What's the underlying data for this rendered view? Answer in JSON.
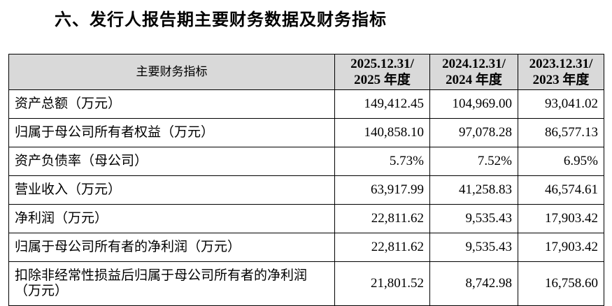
{
  "header": {
    "title": "六、发行人报告期主要财务数据及财务指标"
  },
  "table": {
    "columns": [
      [
        "主要财务指标"
      ],
      [
        "2025.12.31/",
        "2025 年度"
      ],
      [
        "2024.12.31/",
        "2024 年度"
      ],
      [
        "2023.12.31/",
        "2023 年度"
      ]
    ],
    "rows": [
      [
        "资产总额（万元）",
        "149,412.45",
        "104,969.00",
        "93,041.02"
      ],
      [
        "归属于母公司所有者权益（万元）",
        "140,858.10",
        "97,078.28",
        "86,577.13"
      ],
      [
        "资产负债率（母公司）",
        "5.73%",
        "7.52%",
        "6.95%"
      ],
      [
        "营业收入（万元）",
        "63,917.99",
        "41,258.83",
        "46,574.61"
      ],
      [
        "净利润（万元）",
        "22,811.62",
        "9,535.43",
        "17,903.42"
      ],
      [
        "归属于母公司所有者的净利润（万元）",
        "22,811.62",
        "9,535.43",
        "17,903.42"
      ],
      [
        "扣除非经常性损益后归属于母公司所有者的净利润（万元）",
        "21,801.52",
        "8,742.98",
        "16,758.60"
      ]
    ]
  }
}
